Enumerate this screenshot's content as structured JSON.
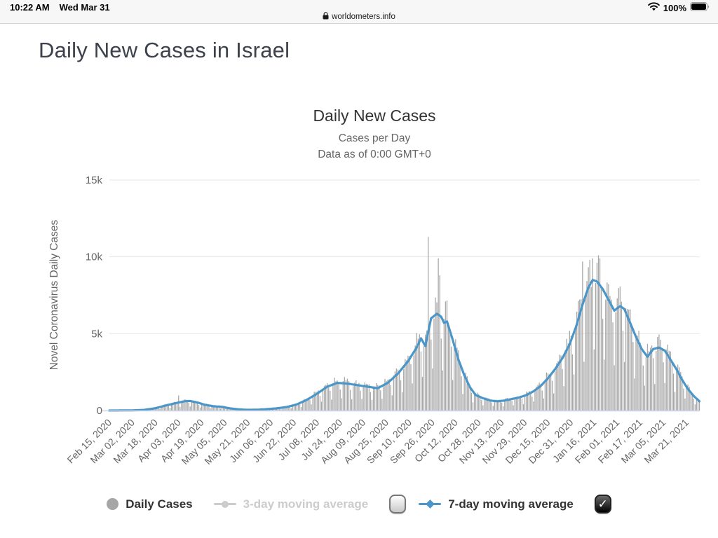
{
  "status_bar": {
    "time": "10:22 AM",
    "date": "Wed Mar 31",
    "url": "worldometers.info",
    "wifi_icon": "wifi-icon",
    "battery_level": "100%",
    "battery_icon": "battery-full-icon"
  },
  "page": {
    "title": "Daily New Cases in Israel"
  },
  "chart": {
    "title": "Daily New Cases",
    "subtitle1": "Cases per Day",
    "subtitle2": "Data as of 0:00 GMT+0"
  },
  "legend": {
    "items": [
      {
        "label": "Daily Cases",
        "marker": "gray-circle",
        "enabled": true
      },
      {
        "label": "3-day moving average",
        "marker": "gray-line-dot",
        "enabled": false
      },
      {
        "label": "7-day moving average",
        "marker": "blue-line-diamond",
        "enabled": true
      }
    ],
    "checkbox_3day_checked": false,
    "checkbox_7day_checked": true
  },
  "chart_data": {
    "type": "bar",
    "title": "Daily New Cases",
    "subtitle": [
      "Cases per Day",
      "Data as of 0:00 GMT+0"
    ],
    "ylabel": "Novel Coronavirus Daily Cases",
    "xlabel": "",
    "ylim": [
      0,
      15000
    ],
    "grid": "horizontal",
    "legend_position": "bottom",
    "yticks": [
      {
        "value": 0,
        "label": "0"
      },
      {
        "value": 5000,
        "label": "5k"
      },
      {
        "value": 10000,
        "label": "10k"
      },
      {
        "value": 15000,
        "label": "15k"
      }
    ],
    "x_start_date": "2020-02-15",
    "x_end_date": "2021-03-30",
    "x_tick_interval_days": 16,
    "x_tick_labels": [
      "Feb 15, 2020",
      "Mar 02, 2020",
      "Mar 18, 2020",
      "Apr 03, 2020",
      "Apr 19, 2020",
      "May 05, 2020",
      "May 21, 2020",
      "Jun 06, 2020",
      "Jun 22, 2020",
      "Jul 08, 2020",
      "Jul 24, 2020",
      "Aug 09, 2020",
      "Aug 25, 2020",
      "Sep 10, 2020",
      "Sep 26, 2020",
      "Oct 12, 2020",
      "Oct 28, 2020",
      "Nov 13, 2020",
      "Nov 29, 2020",
      "Dec 15, 2020",
      "Dec 31, 2020",
      "Jan 16, 2021",
      "Feb 01, 2021",
      "Feb 17, 2021",
      "Mar 05, 2021",
      "Mar 21, 2021"
    ],
    "colors": {
      "bars": "#a8a8a8",
      "avg7_line": "#4b96c8",
      "grid": "#e6e6e6",
      "axis_line": "#ccd6eb",
      "axis_text": "#666666"
    },
    "series": [
      {
        "name": "Daily Cases",
        "type": "column",
        "color": "#a8a8a8",
        "visible": true,
        "weekly_pattern": [
          1.0,
          1.15,
          1.15,
          1.12,
          1.05,
          0.8,
          0.45
        ],
        "spikes": {
          "2020-04-03": 980,
          "2020-09-23": 11300,
          "2020-09-30": 9900,
          "2020-10-01": 8800,
          "2021-01-08": 9700,
          "2021-01-13": 9800,
          "2021-01-15": 9900,
          "2021-01-19": 10100,
          "2021-01-20": 9900
        }
      },
      {
        "name": "3-day moving average",
        "type": "line",
        "color": "#cccccc",
        "visible": false
      },
      {
        "name": "7-day moving average",
        "type": "line",
        "color": "#4b96c8",
        "visible": true,
        "anchors": [
          [
            "2020-02-15",
            0
          ],
          [
            "2020-03-01",
            5
          ],
          [
            "2020-03-10",
            40
          ],
          [
            "2020-03-18",
            150
          ],
          [
            "2020-03-25",
            330
          ],
          [
            "2020-04-01",
            480
          ],
          [
            "2020-04-07",
            600
          ],
          [
            "2020-04-11",
            620
          ],
          [
            "2020-04-16",
            520
          ],
          [
            "2020-04-21",
            380
          ],
          [
            "2020-04-27",
            280
          ],
          [
            "2020-05-03",
            240
          ],
          [
            "2020-05-08",
            150
          ],
          [
            "2020-05-14",
            80
          ],
          [
            "2020-05-20",
            45
          ],
          [
            "2020-05-27",
            50
          ],
          [
            "2020-06-03",
            90
          ],
          [
            "2020-06-10",
            140
          ],
          [
            "2020-06-17",
            230
          ],
          [
            "2020-06-24",
            400
          ],
          [
            "2020-07-01",
            700
          ],
          [
            "2020-07-08",
            1100
          ],
          [
            "2020-07-15",
            1550
          ],
          [
            "2020-07-22",
            1800
          ],
          [
            "2020-07-29",
            1750
          ],
          [
            "2020-08-05",
            1650
          ],
          [
            "2020-08-12",
            1550
          ],
          [
            "2020-08-19",
            1450
          ],
          [
            "2020-08-26",
            1800
          ],
          [
            "2020-09-02",
            2400
          ],
          [
            "2020-09-09",
            3200
          ],
          [
            "2020-09-15",
            4100
          ],
          [
            "2020-09-18",
            4700
          ],
          [
            "2020-09-21",
            4200
          ],
          [
            "2020-09-25",
            6000
          ],
          [
            "2020-09-29",
            6300
          ],
          [
            "2020-10-02",
            6100
          ],
          [
            "2020-10-04",
            5700
          ],
          [
            "2020-10-06",
            5800
          ],
          [
            "2020-10-10",
            4600
          ],
          [
            "2020-10-14",
            3300
          ],
          [
            "2020-10-18",
            2300
          ],
          [
            "2020-10-22",
            1500
          ],
          [
            "2020-10-26",
            1000
          ],
          [
            "2020-10-31",
            800
          ],
          [
            "2020-11-05",
            650
          ],
          [
            "2020-11-10",
            600
          ],
          [
            "2020-11-15",
            650
          ],
          [
            "2020-11-20",
            750
          ],
          [
            "2020-11-25",
            850
          ],
          [
            "2020-11-30",
            1000
          ],
          [
            "2020-12-05",
            1250
          ],
          [
            "2020-12-10",
            1600
          ],
          [
            "2020-12-15",
            2100
          ],
          [
            "2020-12-20",
            2700
          ],
          [
            "2020-12-25",
            3400
          ],
          [
            "2020-12-30",
            4300
          ],
          [
            "2021-01-04",
            5600
          ],
          [
            "2021-01-08",
            6900
          ],
          [
            "2021-01-12",
            8000
          ],
          [
            "2021-01-15",
            8500
          ],
          [
            "2021-01-18",
            8400
          ],
          [
            "2021-01-22",
            7900
          ],
          [
            "2021-01-26",
            7200
          ],
          [
            "2021-01-30",
            6500
          ],
          [
            "2021-02-03",
            6800
          ],
          [
            "2021-02-06",
            6600
          ],
          [
            "2021-02-10",
            5700
          ],
          [
            "2021-02-14",
            4800
          ],
          [
            "2021-02-18",
            4000
          ],
          [
            "2021-02-22",
            3500
          ],
          [
            "2021-02-26",
            4000
          ],
          [
            "2021-03-02",
            4100
          ],
          [
            "2021-03-06",
            3900
          ],
          [
            "2021-03-10",
            3300
          ],
          [
            "2021-03-14",
            2700
          ],
          [
            "2021-03-18",
            2000
          ],
          [
            "2021-03-22",
            1400
          ],
          [
            "2021-03-26",
            950
          ],
          [
            "2021-03-30",
            600
          ]
        ]
      }
    ]
  }
}
